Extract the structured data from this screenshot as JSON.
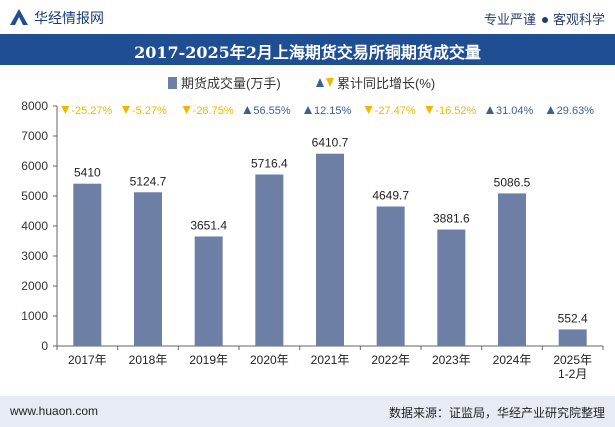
{
  "header": {
    "brand": "华经情报网",
    "tagline_left": "专业严谨",
    "tagline_right": "客观科学"
  },
  "chart_data": {
    "type": "bar",
    "title": "2017-2025年2月上海期货交易所铜期货成交量",
    "categories": [
      "2017年",
      "2018年",
      "2019年",
      "2020年",
      "2021年",
      "2022年",
      "2023年",
      "2024年",
      "2025年\n1-2月"
    ],
    "series": [
      {
        "name": "期货成交量(万手)",
        "type": "bar",
        "color": "#6e7fa6",
        "values": [
          5410,
          5124.7,
          3651.4,
          5716.4,
          6410.7,
          4649.7,
          3881.6,
          5086.5,
          552.4
        ],
        "labels": [
          "5410",
          "5124.7",
          "3651.4",
          "5716.4",
          "6410.7",
          "4649.7",
          "3881.6",
          "5086.5",
          "552.4"
        ]
      },
      {
        "name": "累计同比增长(%)",
        "type": "marker",
        "up_color": "#3a5f96",
        "down_color": "#f2b600",
        "values": [
          -25.27,
          -5.27,
          -28.75,
          56.55,
          12.15,
          -27.47,
          -16.52,
          31.04,
          29.63
        ],
        "labels": [
          "-25.27%",
          "-5.27%",
          "-28.75%",
          "56.55%",
          "12.15%",
          "-27.47%",
          "-16.52%",
          "31.04%",
          "29.63%"
        ]
      }
    ],
    "ylim": [
      0,
      8000
    ],
    "yticks": [
      "0",
      "1000",
      "2000",
      "3000",
      "4000",
      "5000",
      "6000",
      "7000",
      "8000"
    ],
    "legend_position": "top-center",
    "grid": false
  },
  "footer": {
    "url": "www.huaon.com",
    "source": "数据来源：证监局，华经产业研究院整理"
  }
}
